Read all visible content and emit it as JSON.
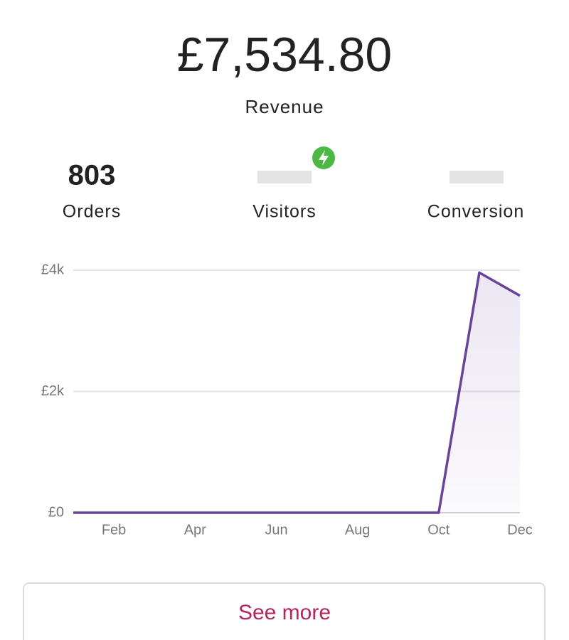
{
  "header": {
    "value": "£7,534.80",
    "label": "Revenue"
  },
  "stats": [
    {
      "value": 803,
      "label": "Orders"
    },
    {
      "label": "Visitors"
    },
    {
      "label": "Conversion"
    }
  ],
  "chart_data": {
    "type": "line",
    "categories": [
      null,
      "Feb",
      null,
      "Apr",
      null,
      "Jun",
      null,
      "Aug",
      null,
      "Oct",
      null,
      "Dec"
    ],
    "values": [
      0,
      0,
      0,
      0,
      0,
      0,
      0,
      0,
      0,
      0,
      3960,
      3580
    ],
    "color": "#674399",
    "area": true,
    "grid": true,
    "ylim": [
      0,
      4000
    ],
    "yticks": [
      {
        "value": 0,
        "label": "£0"
      },
      {
        "value": 2000,
        "label": "£2k"
      },
      {
        "value": 4000,
        "label": "£4k"
      }
    ]
  },
  "button": {
    "label": "See more"
  }
}
